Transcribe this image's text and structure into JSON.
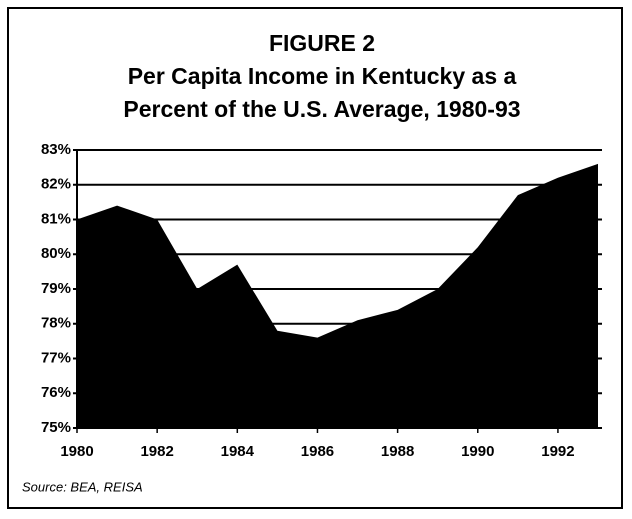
{
  "chart_data": {
    "type": "area",
    "title_lines": [
      "FIGURE 2",
      "Per Capita Income in Kentucky as a",
      "Percent of the U.S. Average, 1980-93"
    ],
    "source": "Source: BEA, REISA",
    "x": [
      1980,
      1981,
      1982,
      1983,
      1984,
      1985,
      1986,
      1987,
      1988,
      1989,
      1990,
      1991,
      1992,
      1993
    ],
    "values": [
      81.0,
      81.4,
      81.0,
      79.0,
      79.7,
      77.8,
      77.6,
      78.1,
      78.4,
      79.0,
      80.2,
      81.7,
      82.2,
      82.6
    ],
    "color": "#000000",
    "xlim": [
      1980,
      1993
    ],
    "xticks": [
      1980,
      1982,
      1984,
      1986,
      1988,
      1990,
      1992
    ],
    "ylim": [
      75,
      83
    ],
    "yticks": [
      {
        "value": 75,
        "label": "75%"
      },
      {
        "value": 76,
        "label": "76%"
      },
      {
        "value": 77,
        "label": "77%"
      },
      {
        "value": 78,
        "label": "78%"
      },
      {
        "value": 79,
        "label": "79%"
      },
      {
        "value": 80,
        "label": "80%"
      },
      {
        "value": 81,
        "label": "81%"
      },
      {
        "value": 82,
        "label": "82%"
      },
      {
        "value": 83,
        "label": "83%"
      }
    ],
    "grid": true
  }
}
